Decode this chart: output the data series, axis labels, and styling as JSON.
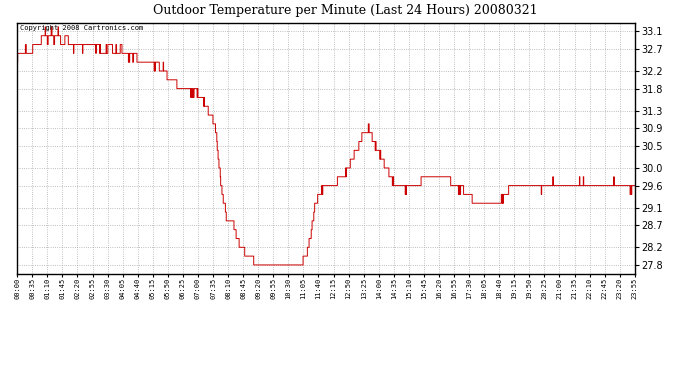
{
  "title": "Outdoor Temperature per Minute (Last 24 Hours) 20080321",
  "copyright_text": "Copyright 2008 Cartronics.com",
  "line_color": "#cc0000",
  "background_color": "#ffffff",
  "grid_color": "#aaaaaa",
  "yticks": [
    27.8,
    28.2,
    28.7,
    29.1,
    29.6,
    30.0,
    30.5,
    30.9,
    31.3,
    31.8,
    32.2,
    32.7,
    33.1
  ],
  "ymin": 27.6,
  "ymax": 33.3,
  "xtick_labels": [
    "00:00",
    "00:35",
    "01:10",
    "01:45",
    "02:20",
    "02:55",
    "03:30",
    "04:05",
    "04:40",
    "05:15",
    "05:50",
    "06:25",
    "07:00",
    "07:35",
    "08:10",
    "08:45",
    "09:20",
    "09:55",
    "10:30",
    "11:05",
    "11:40",
    "12:15",
    "12:50",
    "13:25",
    "14:00",
    "14:35",
    "15:10",
    "15:45",
    "16:20",
    "16:55",
    "17:30",
    "18:05",
    "18:40",
    "19:15",
    "19:50",
    "20:25",
    "21:00",
    "21:35",
    "22:10",
    "22:45",
    "23:20",
    "23:55"
  ],
  "num_points": 1440,
  "key_points": {
    "0": 32.5,
    "10": 32.6,
    "20": 32.7,
    "30": 32.6,
    "40": 32.8,
    "50": 32.7,
    "55": 32.9,
    "60": 33.0,
    "65": 33.1,
    "70": 32.9,
    "75": 33.0,
    "80": 33.1,
    "85": 32.9,
    "90": 33.0,
    "95": 33.1,
    "100": 32.9,
    "105": 32.8,
    "110": 32.9,
    "115": 33.0,
    "120": 32.85,
    "130": 32.7,
    "140": 32.8,
    "150": 32.7,
    "160": 32.8,
    "165": 32.9,
    "170": 32.8,
    "180": 32.7,
    "190": 32.75,
    "200": 32.6,
    "210": 32.7,
    "215": 32.8,
    "220": 32.7,
    "225": 32.6,
    "230": 32.7,
    "235": 32.6,
    "240": 32.7,
    "250": 32.6,
    "260": 32.5,
    "265": 32.6,
    "270": 32.5,
    "275": 32.6,
    "280": 32.5,
    "285": 32.4,
    "290": 32.5,
    "295": 32.45,
    "300": 32.4,
    "305": 32.45,
    "310": 32.4,
    "315": 32.35,
    "320": 32.3,
    "325": 32.35,
    "330": 32.3,
    "335": 32.2,
    "340": 32.3,
    "345": 32.2,
    "350": 32.1,
    "360": 32.0,
    "370": 31.9,
    "380": 31.85,
    "390": 31.8,
    "400": 31.75,
    "410": 31.7,
    "415": 31.8,
    "420": 31.7,
    "425": 31.6,
    "430": 31.55,
    "435": 31.5,
    "440": 31.4,
    "445": 31.3,
    "450": 31.2,
    "455": 31.1,
    "460": 31.0,
    "463": 30.8,
    "466": 30.5,
    "469": 30.2,
    "472": 29.9,
    "475": 29.6,
    "478": 29.4,
    "481": 29.2,
    "484": 29.1,
    "487": 28.9,
    "490": 28.8,
    "493": 28.7,
    "496": 28.75,
    "500": 28.8,
    "503": 28.75,
    "506": 28.65,
    "509": 28.55,
    "512": 28.45,
    "515": 28.35,
    "518": 28.25,
    "521": 28.2,
    "525": 28.15,
    "530": 28.1,
    "535": 28.05,
    "540": 28.0,
    "545": 28.05,
    "548": 27.95,
    "551": 27.9,
    "554": 27.85,
    "557": 27.9,
    "560": 27.85,
    "563": 27.9,
    "566": 27.85,
    "570": 27.82,
    "575": 27.84,
    "580": 27.82,
    "585": 27.83,
    "590": 27.82,
    "595": 27.83,
    "600": 27.82,
    "605": 27.83,
    "610": 27.82,
    "615": 27.83,
    "620": 27.84,
    "625": 27.82,
    "630": 27.83,
    "635": 27.82,
    "640": 27.83,
    "645": 27.82,
    "650": 27.83,
    "655": 27.82,
    "660": 27.83,
    "663": 27.85,
    "666": 27.9,
    "669": 27.95,
    "672": 28.0,
    "675": 28.1,
    "678": 28.2,
    "681": 28.35,
    "684": 28.5,
    "687": 28.7,
    "690": 28.9,
    "693": 29.1,
    "696": 29.2,
    "699": 29.3,
    "702": 29.4,
    "705": 29.45,
    "710": 29.5,
    "715": 29.55,
    "720": 29.6,
    "725": 29.65,
    "730": 29.7,
    "735": 29.6,
    "740": 29.65,
    "745": 29.7,
    "750": 29.75,
    "755": 29.8,
    "760": 29.85,
    "765": 29.9,
    "770": 30.0,
    "775": 30.1,
    "780": 30.2,
    "785": 30.3,
    "790": 30.4,
    "795": 30.5,
    "800": 30.6,
    "803": 30.7,
    "806": 30.8,
    "809": 30.85,
    "812": 30.9,
    "815": 30.85,
    "818": 30.9,
    "821": 30.85,
    "824": 30.8,
    "827": 30.7,
    "830": 30.6,
    "835": 30.5,
    "840": 30.4,
    "845": 30.3,
    "850": 30.2,
    "855": 30.1,
    "860": 30.0,
    "865": 29.9,
    "870": 29.8,
    "875": 29.7,
    "878": 29.65,
    "881": 29.6,
    "884": 29.55,
    "887": 29.6,
    "890": 29.55,
    "893": 29.5,
    "896": 29.55,
    "899": 29.6,
    "902": 29.55,
    "905": 29.5,
    "908": 29.55,
    "911": 29.6,
    "914": 29.55,
    "917": 29.6,
    "920": 29.65,
    "925": 29.6,
    "930": 29.65,
    "935": 29.6,
    "940": 29.7,
    "945": 29.75,
    "950": 29.8,
    "955": 29.85,
    "960": 29.8,
    "965": 29.85,
    "970": 29.8,
    "975": 29.75,
    "980": 29.8,
    "985": 29.75,
    "990": 29.8,
    "995": 29.75,
    "1000": 29.8,
    "1005": 29.75,
    "1010": 29.7,
    "1015": 29.65,
    "1020": 29.6,
    "1025": 29.55,
    "1030": 29.5,
    "1035": 29.55,
    "1040": 29.5,
    "1045": 29.45,
    "1050": 29.4,
    "1055": 29.35,
    "1060": 29.3,
    "1065": 29.25,
    "1070": 29.2,
    "1075": 29.15,
    "1080": 29.1,
    "1085": 29.15,
    "1090": 29.2,
    "1093": 29.15,
    "1096": 29.2,
    "1099": 29.15,
    "1102": 29.2,
    "1105": 29.25,
    "1108": 29.2,
    "1111": 29.25,
    "1114": 29.2,
    "1117": 29.15,
    "1120": 29.2,
    "1125": 29.25,
    "1130": 29.3,
    "1135": 29.35,
    "1140": 29.4,
    "1145": 29.5,
    "1150": 29.55,
    "1155": 29.6,
    "1158": 29.65,
    "1161": 29.6,
    "1164": 29.65,
    "1167": 29.6,
    "1170": 29.65,
    "1175": 29.6,
    "1180": 29.65,
    "1185": 29.6,
    "1190": 29.65,
    "1195": 29.6,
    "1200": 29.65,
    "1205": 29.7,
    "1210": 29.65,
    "1215": 29.6,
    "1218": 29.55,
    "1221": 29.5,
    "1224": 29.55,
    "1227": 29.6,
    "1230": 29.55,
    "1235": 29.6,
    "1240": 29.55,
    "1245": 29.6,
    "1248": 29.7,
    "1251": 29.65,
    "1254": 29.7,
    "1257": 29.65,
    "1260": 29.6,
    "1265": 29.65,
    "1270": 29.6,
    "1275": 29.65,
    "1280": 29.6,
    "1285": 29.65,
    "1290": 29.6,
    "1295": 29.65,
    "1300": 29.6,
    "1305": 29.65,
    "1310": 29.7,
    "1315": 29.65,
    "1320": 29.7,
    "1325": 29.65,
    "1330": 29.6,
    "1335": 29.65,
    "1340": 29.6,
    "1345": 29.65,
    "1350": 29.6,
    "1355": 29.65,
    "1360": 29.6,
    "1365": 29.55,
    "1370": 29.5,
    "1375": 29.55,
    "1380": 29.6,
    "1385": 29.65,
    "1390": 29.7,
    "1395": 29.65,
    "1400": 29.6,
    "1405": 29.65,
    "1410": 29.7,
    "1415": 29.65,
    "1420": 29.6,
    "1425": 29.55,
    "1430": 29.5,
    "1435": 29.55,
    "1439": 29.5
  }
}
